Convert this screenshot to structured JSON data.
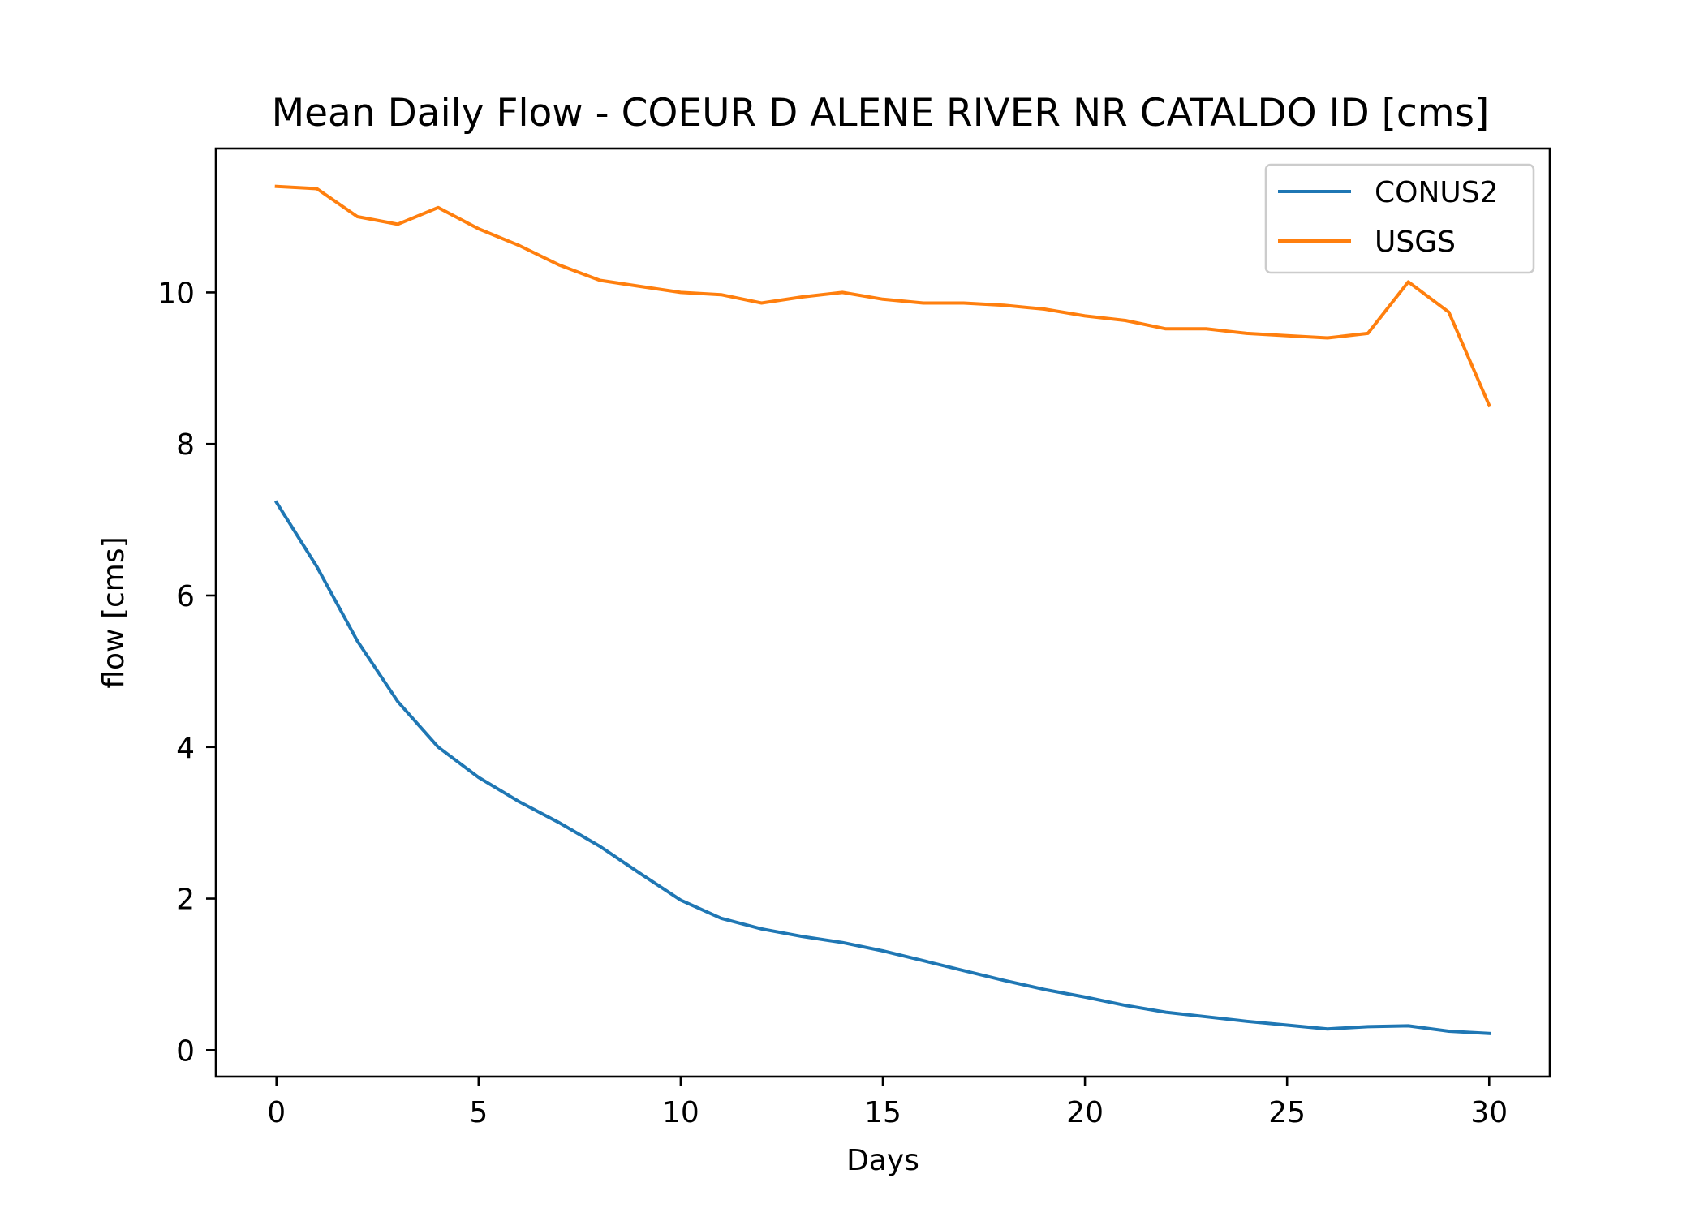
{
  "chart_data": {
    "type": "line",
    "title": "Mean Daily Flow - COEUR D ALENE RIVER NR CATALDO ID [cms]",
    "xlabel": "Days",
    "ylabel": "flow [cms]",
    "xlim": [
      -1.5,
      31.5
    ],
    "ylim": [
      -0.35,
      11.9
    ],
    "xticks": [
      0,
      5,
      10,
      15,
      20,
      25,
      30
    ],
    "yticks": [
      0,
      2,
      4,
      6,
      8,
      10
    ],
    "grid": false,
    "legend_position": "top-right",
    "x": [
      0,
      1,
      2,
      3,
      4,
      5,
      6,
      7,
      8,
      9,
      10,
      11,
      12,
      13,
      14,
      15,
      16,
      17,
      18,
      19,
      20,
      21,
      22,
      23,
      24,
      25,
      26,
      27,
      28,
      29,
      30
    ],
    "series": [
      {
        "name": "CONUS2",
        "color": "#1f77b4",
        "values": [
          7.23,
          6.38,
          5.4,
          4.6,
          4.0,
          3.6,
          3.28,
          3.0,
          2.69,
          2.33,
          1.98,
          1.74,
          1.6,
          1.5,
          1.42,
          1.31,
          1.18,
          1.05,
          0.92,
          0.8,
          0.7,
          0.59,
          0.5,
          0.44,
          0.38,
          0.33,
          0.28,
          0.31,
          0.32,
          0.25,
          0.22
        ]
      },
      {
        "name": "USGS",
        "color": "#ff7f0e",
        "values": [
          11.4,
          11.37,
          11.0,
          10.9,
          11.12,
          10.84,
          10.62,
          10.36,
          10.16,
          10.08,
          10.0,
          9.97,
          9.86,
          9.94,
          10.0,
          9.91,
          9.86,
          9.86,
          9.83,
          9.78,
          9.69,
          9.63,
          9.52,
          9.52,
          9.46,
          9.43,
          9.4,
          9.46,
          10.14,
          9.74,
          8.51
        ]
      }
    ]
  }
}
